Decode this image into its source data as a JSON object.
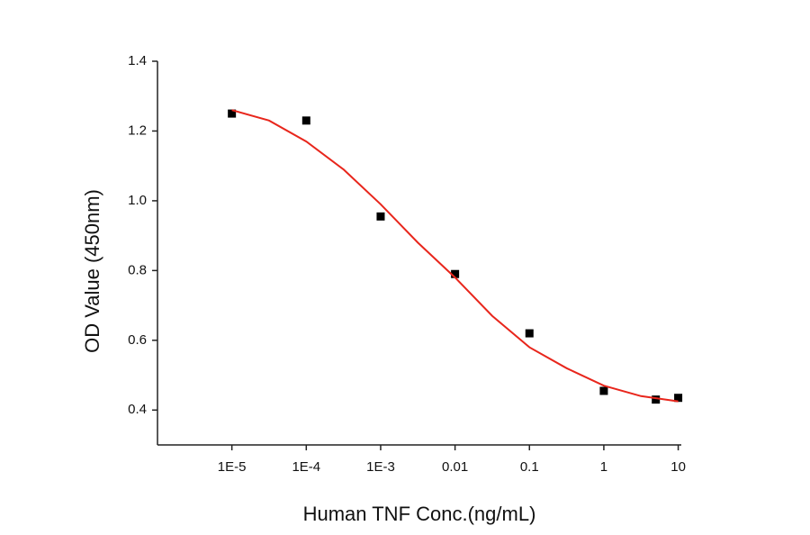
{
  "chart_data": {
    "type": "scatter",
    "xlabel": "Human TNF Conc.(ng/mL)",
    "ylabel": "OD Value (450nm)",
    "xscale": "log",
    "xlim": [
      1e-06,
      11
    ],
    "xticks": [
      {
        "value": 1e-05,
        "label": "1E-5"
      },
      {
        "value": 0.0001,
        "label": "1E-4"
      },
      {
        "value": 0.001,
        "label": "1E-3"
      },
      0.01,
      0.1,
      1,
      10
    ],
    "ylim": [
      0.3,
      1.4
    ],
    "yticks": [
      0.4,
      0.6,
      0.8,
      {
        "value": 1.0,
        "label": "1.0"
      },
      1.2,
      1.4
    ],
    "grid": false,
    "series": [
      {
        "color": "#000000",
        "marker": "square",
        "x": [
          1e-05,
          0.0001,
          0.001,
          0.01,
          0.1,
          1,
          5,
          10
        ],
        "values": [
          1.25,
          1.23,
          0.955,
          0.79,
          0.62,
          0.455,
          0.43,
          0.435
        ]
      },
      {
        "color": "#e8261c",
        "marker": "line",
        "x": [
          1e-05,
          3.16e-05,
          0.0001,
          0.000316,
          0.001,
          0.00316,
          0.01,
          0.0316,
          0.1,
          0.316,
          1,
          3.16,
          10
        ],
        "values": [
          1.26,
          1.23,
          1.17,
          1.09,
          0.99,
          0.88,
          0.78,
          0.67,
          0.58,
          0.52,
          0.47,
          0.44,
          0.425
        ]
      }
    ]
  }
}
